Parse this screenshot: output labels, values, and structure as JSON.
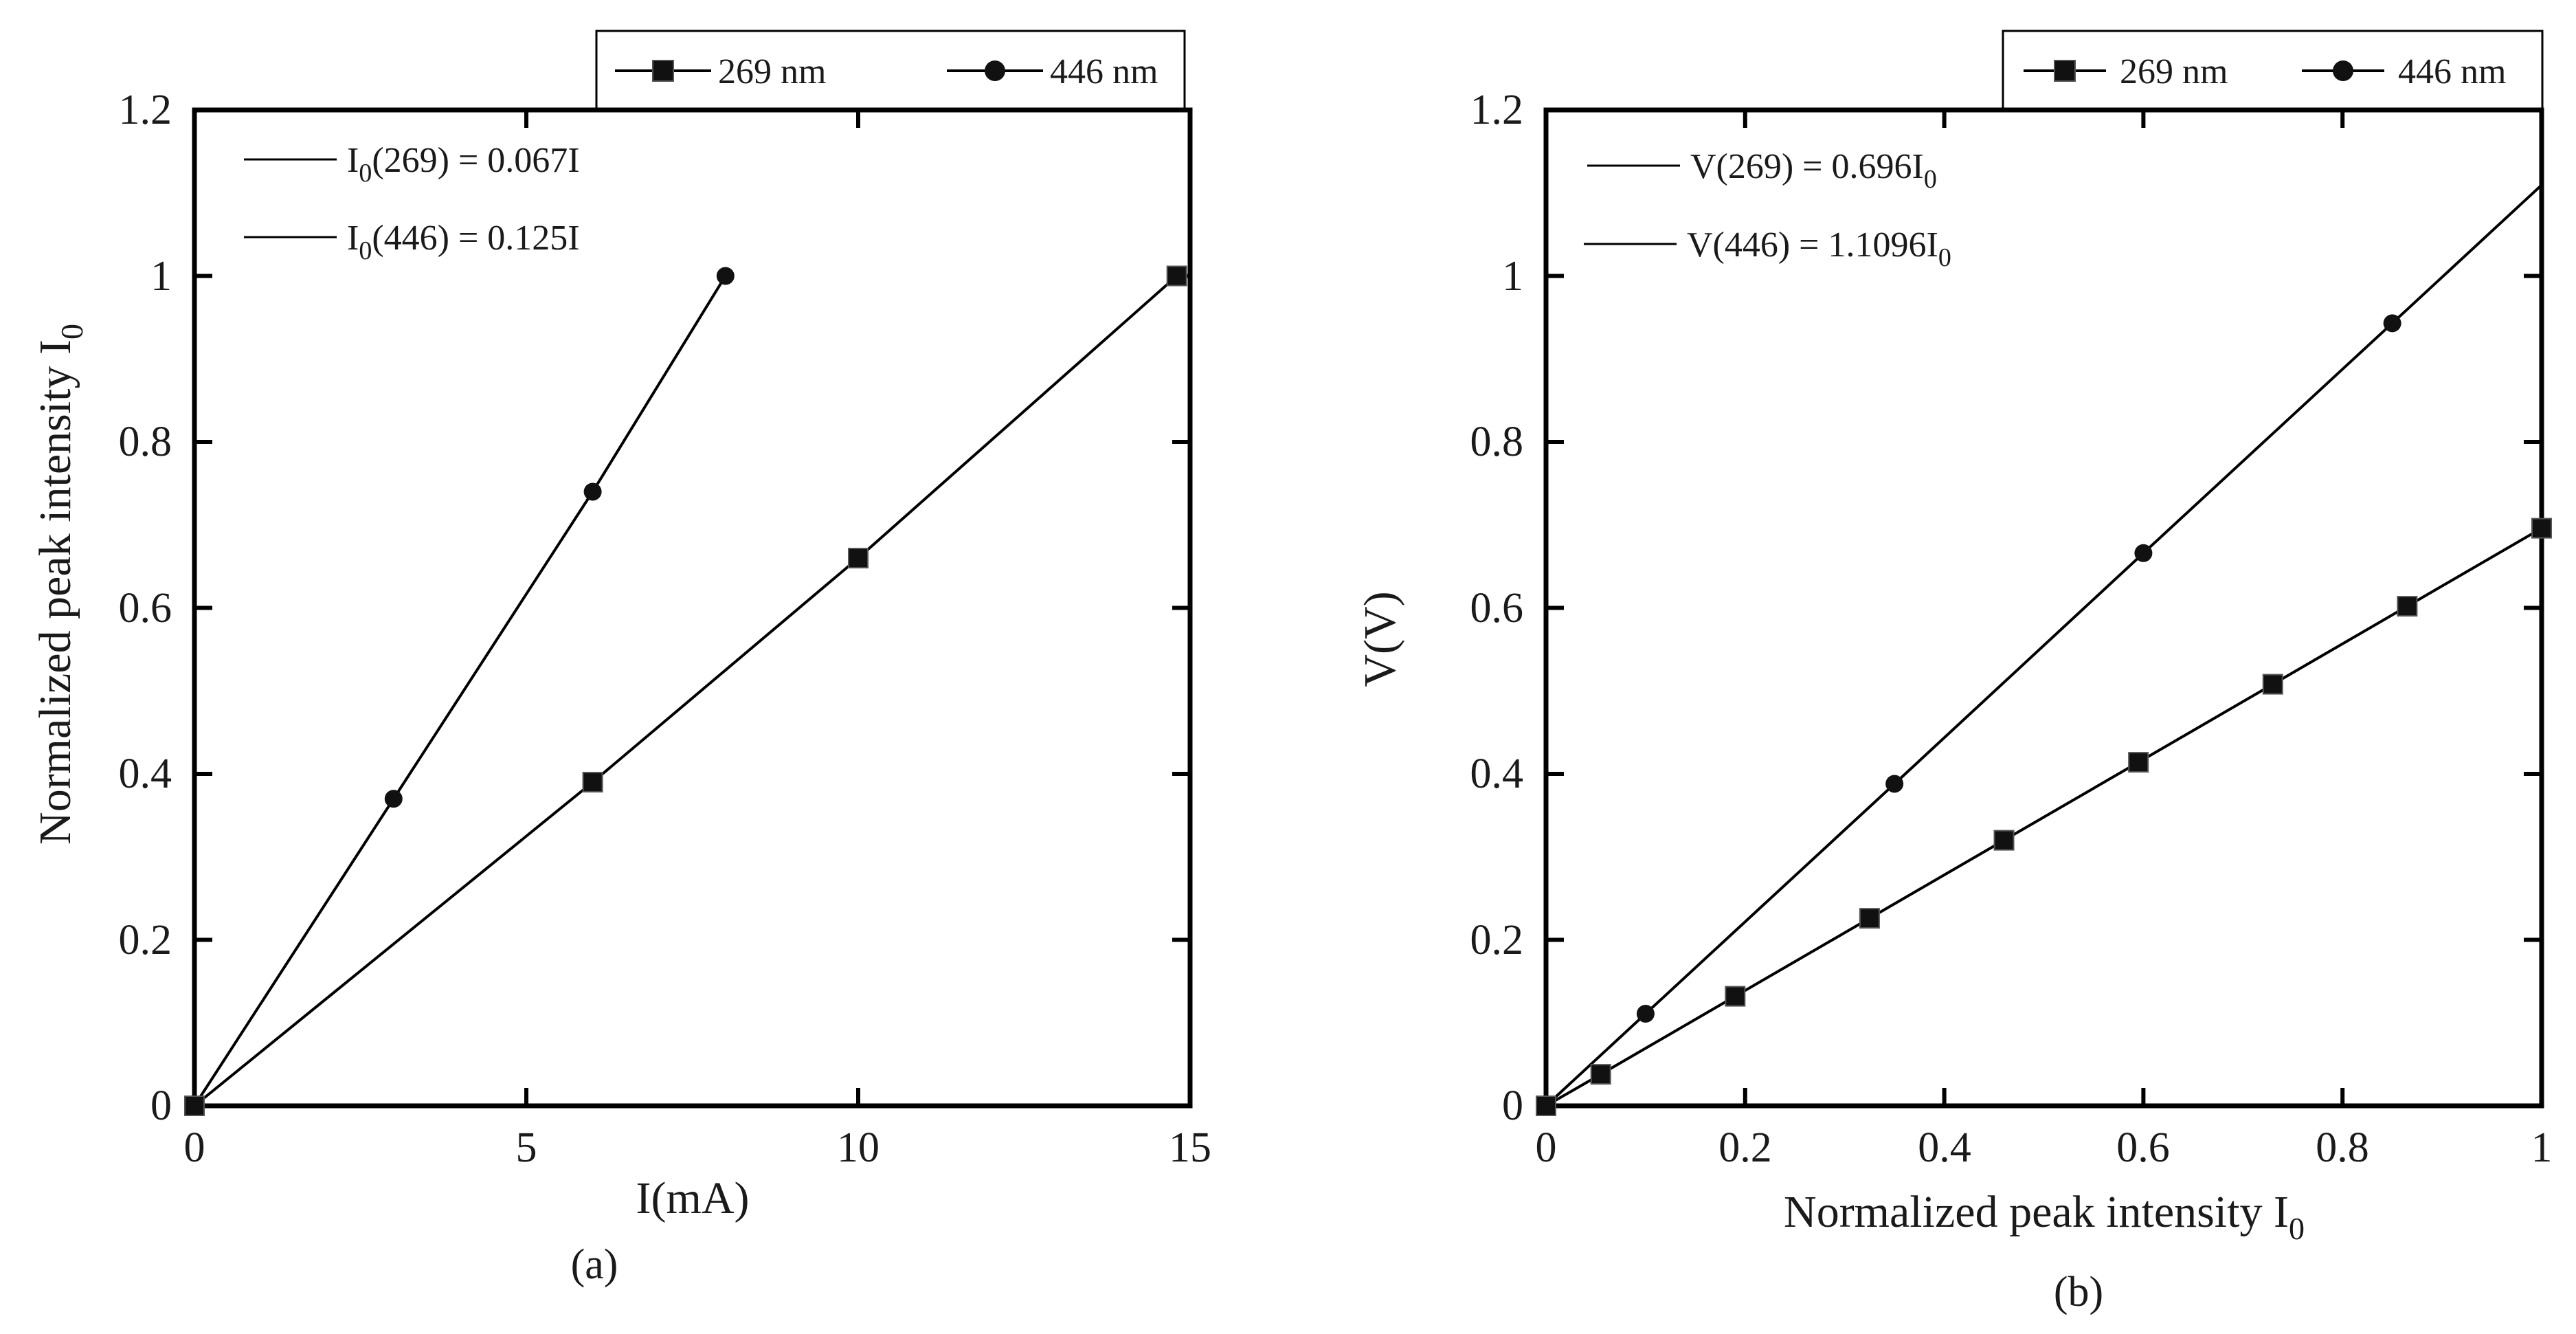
{
  "chart_data": [
    {
      "type": "line",
      "panel_label": "(a)",
      "title": "",
      "xlabel": "I(mA)",
      "ylabel_main": "Normalized peak intensity I",
      "ylabel_sub": "0",
      "xlim": [
        0,
        15
      ],
      "ylim": [
        0,
        1.2
      ],
      "xticks": [
        0,
        5,
        10,
        15
      ],
      "yticks": [
        0,
        0.2,
        0.4,
        0.6,
        0.8,
        1,
        1.2
      ],
      "xtick_labels": [
        "0",
        "5",
        "10",
        "15"
      ],
      "ytick_labels": [
        "0",
        "0.2",
        "0.4",
        "0.6",
        "0.8",
        "1",
        "1.2"
      ],
      "legend_position": "above-top-right",
      "series": [
        {
          "name": "269 nm",
          "marker": "square",
          "x": [
            0,
            6,
            10,
            14.8
          ],
          "y": [
            0,
            0.39,
            0.66,
            1.0
          ]
        },
        {
          "name": "446 nm",
          "marker": "circle",
          "x": [
            0,
            3,
            6,
            8
          ],
          "y": [
            0,
            0.37,
            0.74,
            1.0
          ]
        }
      ],
      "annotations": [
        {
          "pre": "I",
          "sub": "0",
          "post": "(269) = 0.067I"
        },
        {
          "pre": "I",
          "sub": "0",
          "post": "(446) = 0.125I"
        }
      ]
    },
    {
      "type": "line",
      "panel_label": "(b)",
      "title": "",
      "xlabel_main": "Normalized peak intensity I",
      "xlabel_sub": "0",
      "ylabel": "V(V)",
      "xlim": [
        0,
        1
      ],
      "ylim": [
        0,
        1.2
      ],
      "xticks": [
        0,
        0.2,
        0.4,
        0.6,
        0.8,
        1
      ],
      "yticks": [
        0,
        0.2,
        0.4,
        0.6,
        0.8,
        1,
        1.2
      ],
      "xtick_labels": [
        "0",
        "0.2",
        "0.4",
        "0.6",
        "0.8",
        "1"
      ],
      "ytick_labels": [
        "0",
        "0.2",
        "0.4",
        "0.6",
        "0.8",
        "1",
        "1.2"
      ],
      "legend_position": "above-top-right",
      "series": [
        {
          "name": "269 nm",
          "marker": "square",
          "x": [
            0,
            0.055,
            0.19,
            0.325,
            0.46,
            0.595,
            0.73,
            0.865,
            1.0
          ],
          "y": [
            0,
            0.038,
            0.132,
            0.226,
            0.32,
            0.414,
            0.508,
            0.602,
            0.696
          ]
        },
        {
          "name": "446 nm",
          "marker": "circle",
          "x": [
            0,
            0.1,
            0.35,
            0.6,
            0.85
          ],
          "y": [
            0,
            0.111,
            0.388,
            0.666,
            0.943
          ]
        }
      ],
      "fit_lines": [
        {
          "series": "446 nm",
          "slope": 1.1096,
          "x_end": 1.0
        }
      ],
      "annotations": [
        {
          "pre": "V(269) = 0.696I",
          "sub": "0",
          "post": ""
        },
        {
          "pre": "V(446) = 1.1096I",
          "sub": "0",
          "post": ""
        }
      ]
    }
  ]
}
